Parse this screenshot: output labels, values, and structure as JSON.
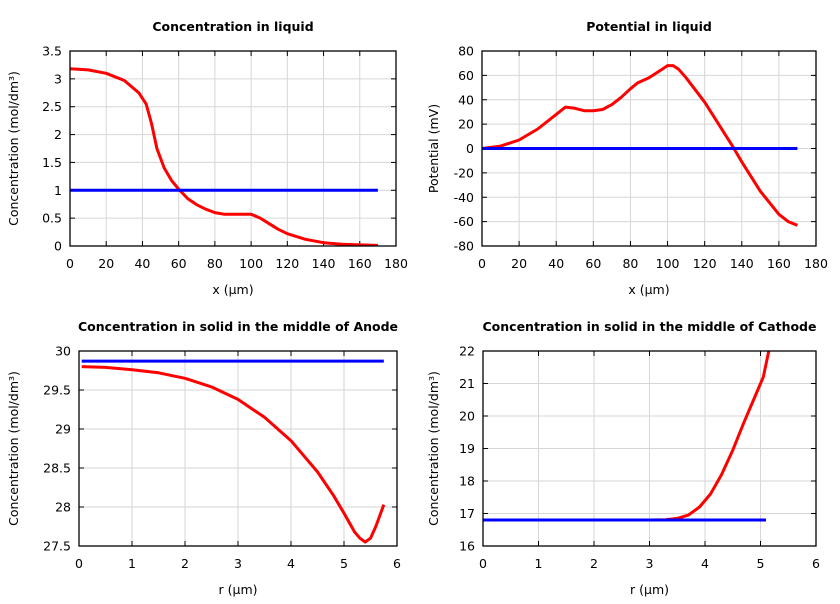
{
  "chart_data": [
    {
      "type": "line",
      "title": "Concentration in liquid",
      "xlabel": "x (µm)",
      "ylabel": "Concentration (mol/dm³)",
      "xlim": [
        0,
        180
      ],
      "ylim": [
        0,
        3.5
      ],
      "xticks": [
        0,
        20,
        40,
        60,
        80,
        100,
        120,
        140,
        160,
        180
      ],
      "yticks": [
        0,
        0.5,
        1,
        1.5,
        2,
        2.5,
        3,
        3.5
      ],
      "grid": true,
      "series": [
        {
          "color": "#ff0000",
          "x": [
            0,
            10,
            20,
            30,
            38,
            42,
            45,
            48,
            52,
            56,
            60,
            65,
            70,
            75,
            80,
            85,
            90,
            95,
            100,
            105,
            110,
            115,
            120,
            130,
            140,
            150,
            160,
            170
          ],
          "y": [
            3.18,
            3.16,
            3.1,
            2.97,
            2.75,
            2.55,
            2.2,
            1.75,
            1.4,
            1.18,
            1.02,
            0.85,
            0.74,
            0.66,
            0.6,
            0.57,
            0.57,
            0.57,
            0.57,
            0.5,
            0.4,
            0.3,
            0.22,
            0.12,
            0.06,
            0.03,
            0.02,
            0.01
          ]
        },
        {
          "color": "#0000ff",
          "x": [
            0,
            170
          ],
          "y": [
            1,
            1
          ]
        }
      ]
    },
    {
      "type": "line",
      "title": "Potential in liquid",
      "xlabel": "x (µm)",
      "ylabel": "Potential (mV)",
      "xlim": [
        0,
        180
      ],
      "ylim": [
        -80,
        80
      ],
      "xticks": [
        0,
        20,
        40,
        60,
        80,
        100,
        120,
        140,
        160,
        180
      ],
      "yticks": [
        -80,
        -60,
        -40,
        -20,
        0,
        20,
        40,
        60,
        80
      ],
      "grid": true,
      "series": [
        {
          "color": "#ff0000",
          "x": [
            0,
            10,
            20,
            30,
            40,
            45,
            50,
            55,
            60,
            65,
            70,
            75,
            80,
            84,
            90,
            95,
            100,
            103,
            106,
            110,
            120,
            130,
            135,
            140,
            150,
            160,
            165,
            170
          ],
          "y": [
            0,
            2,
            7,
            16,
            28,
            34,
            33,
            31,
            31,
            32,
            36,
            42,
            49,
            54,
            58,
            63,
            68,
            68,
            65,
            58,
            38,
            14,
            2,
            -11,
            -35,
            -54,
            -60,
            -63
          ]
        },
        {
          "color": "#0000ff",
          "x": [
            0,
            170
          ],
          "y": [
            0,
            0
          ]
        }
      ]
    },
    {
      "type": "line",
      "title": "Concentration in solid in the middle of Anode",
      "xlabel": "r (µm)",
      "ylabel": "Concentration (mol/dm³)",
      "xlim": [
        0,
        6
      ],
      "ylim": [
        27.5,
        30
      ],
      "xticks": [
        0,
        1,
        2,
        3,
        4,
        5,
        6
      ],
      "yticks": [
        27.5,
        28,
        28.5,
        29,
        29.5,
        30
      ],
      "grid": true,
      "series": [
        {
          "color": "#ff0000",
          "x": [
            0.05,
            0.5,
            1,
            1.5,
            2,
            2.5,
            3,
            3.5,
            4,
            4.5,
            4.8,
            5,
            5.2,
            5.3,
            5.4,
            5.5,
            5.6,
            5.75
          ],
          "y": [
            29.8,
            29.79,
            29.76,
            29.72,
            29.65,
            29.54,
            29.38,
            29.15,
            28.85,
            28.45,
            28.15,
            27.92,
            27.68,
            27.6,
            27.55,
            27.6,
            27.75,
            28.03
          ]
        },
        {
          "color": "#0000ff",
          "x": [
            0.05,
            5.75
          ],
          "y": [
            29.87,
            29.87
          ]
        }
      ]
    },
    {
      "type": "line",
      "title": "Concentration in solid in the middle of Cathode",
      "xlabel": "r (µm)",
      "ylabel": "Concentration (mol/dm³)",
      "xlim": [
        0,
        6
      ],
      "ylim": [
        16,
        22
      ],
      "xticks": [
        0,
        1,
        2,
        3,
        4,
        5,
        6
      ],
      "yticks": [
        16,
        17,
        18,
        19,
        20,
        21,
        22
      ],
      "grid": true,
      "series": [
        {
          "color": "#ff0000",
          "x": [
            0,
            1,
            2,
            3,
            3.3,
            3.5,
            3.7,
            3.9,
            4.1,
            4.3,
            4.5,
            4.7,
            4.9,
            5.05,
            5.15
          ],
          "y": [
            16.8,
            16.8,
            16.8,
            16.8,
            16.81,
            16.85,
            16.95,
            17.2,
            17.6,
            18.2,
            18.95,
            19.8,
            20.6,
            21.2,
            22
          ]
        },
        {
          "color": "#0000ff",
          "x": [
            0,
            5.1
          ],
          "y": [
            16.8,
            16.8
          ]
        }
      ]
    }
  ]
}
